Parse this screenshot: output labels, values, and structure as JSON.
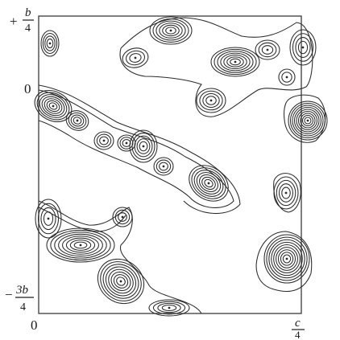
{
  "figure": {
    "type": "electron-density contour map",
    "colors": {
      "ink": "#2a2a2a",
      "background": "#ffffff"
    }
  },
  "axis_labels": {
    "top_left_sign": "+",
    "top_left_num": "b",
    "top_left_den": "4",
    "mid_left": "0",
    "bottom_left_sign": "−",
    "bottom_left_num": "3b",
    "bottom_left_den": "4",
    "bottom_origin": "0",
    "bottom_right_num": "c",
    "bottom_right_den": "4"
  }
}
